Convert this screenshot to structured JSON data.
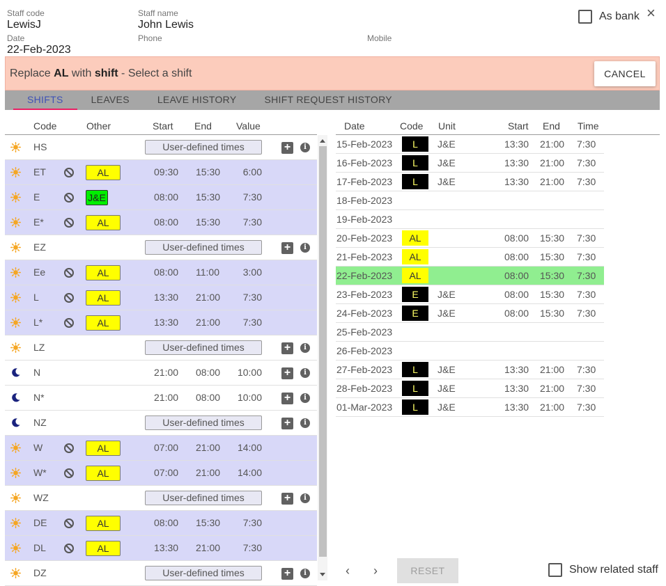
{
  "header": {
    "staff_code_label": "Staff code",
    "staff_code": "LewisJ",
    "staff_name_label": "Staff name",
    "staff_name": "John Lewis",
    "date_label": "Date",
    "date": "22-Feb-2023",
    "phone_label": "Phone",
    "mobile_label": "Mobile",
    "as_bank_label": "As bank",
    "close_icon": "×"
  },
  "banner": {
    "prefix": "Replace ",
    "from_code": "AL",
    "middle": " with ",
    "target": "shift",
    "suffix": " - Select a shift",
    "cancel_label": "CANCEL"
  },
  "tabs": [
    "SHIFTS",
    "LEAVES",
    "LEAVE HISTORY",
    "SHIFT REQUEST HISTORY"
  ],
  "shifts_table": {
    "headers": {
      "code": "Code",
      "other": "Other",
      "start": "Start",
      "end": "End",
      "value": "Value"
    },
    "user_defined_label": "User-defined times",
    "rows": [
      {
        "icon": "sun",
        "code": "HS",
        "udt": true
      },
      {
        "icon": "sun",
        "code": "ET",
        "banned": true,
        "other": "AL",
        "start": "09:30",
        "end": "15:30",
        "value": "6:00"
      },
      {
        "icon": "sun",
        "code": "E",
        "banned": true,
        "other": "J&E",
        "start": "08:00",
        "end": "15:30",
        "value": "7:30"
      },
      {
        "icon": "sun",
        "code": "E*",
        "banned": true,
        "other": "AL",
        "start": "08:00",
        "end": "15:30",
        "value": "7:30"
      },
      {
        "icon": "sun",
        "code": "EZ",
        "udt": true
      },
      {
        "icon": "sun",
        "code": "Ee",
        "banned": true,
        "other": "AL",
        "start": "08:00",
        "end": "11:00",
        "value": "3:00"
      },
      {
        "icon": "sun",
        "code": "L",
        "banned": true,
        "other": "AL",
        "start": "13:30",
        "end": "21:00",
        "value": "7:30"
      },
      {
        "icon": "sun",
        "code": "L*",
        "banned": true,
        "other": "AL",
        "start": "13:30",
        "end": "21:00",
        "value": "7:30"
      },
      {
        "icon": "sun",
        "code": "LZ",
        "udt": true
      },
      {
        "icon": "moon",
        "code": "N",
        "start": "21:00",
        "end": "08:00",
        "value": "10:00",
        "actions": true
      },
      {
        "icon": "moon",
        "code": "N*",
        "start": "21:00",
        "end": "08:00",
        "value": "10:00",
        "actions": true
      },
      {
        "icon": "moon",
        "code": "NZ",
        "udt": true
      },
      {
        "icon": "sun",
        "code": "W",
        "banned": true,
        "other": "AL",
        "start": "07:00",
        "end": "21:00",
        "value": "14:00"
      },
      {
        "icon": "sun",
        "code": "W*",
        "banned": true,
        "other": "AL",
        "start": "07:00",
        "end": "21:00",
        "value": "14:00"
      },
      {
        "icon": "sun",
        "code": "WZ",
        "udt": true
      },
      {
        "icon": "sun",
        "code": "DE",
        "banned": true,
        "other": "AL",
        "start": "08:00",
        "end": "15:30",
        "value": "7:30"
      },
      {
        "icon": "sun",
        "code": "DL",
        "banned": true,
        "other": "AL",
        "start": "13:30",
        "end": "21:00",
        "value": "7:30"
      },
      {
        "icon": "sun",
        "code": "DZ",
        "udt": true
      }
    ]
  },
  "schedule_table": {
    "headers": {
      "date": "Date",
      "code": "Code",
      "unit": "Unit",
      "start": "Start",
      "end": "End",
      "time": "Time"
    },
    "rows": [
      {
        "date": "15-Feb-2023",
        "code": "L",
        "style": "black",
        "unit": "J&E",
        "start": "13:30",
        "end": "21:00",
        "time": "7:30"
      },
      {
        "date": "16-Feb-2023",
        "code": "L",
        "style": "black",
        "unit": "J&E",
        "start": "13:30",
        "end": "21:00",
        "time": "7:30"
      },
      {
        "date": "17-Feb-2023",
        "code": "L",
        "style": "black",
        "unit": "J&E",
        "start": "13:30",
        "end": "21:00",
        "time": "7:30"
      },
      {
        "date": "18-Feb-2023"
      },
      {
        "date": "19-Feb-2023"
      },
      {
        "date": "20-Feb-2023",
        "code": "AL",
        "style": "yellow",
        "start": "08:00",
        "end": "15:30",
        "time": "7:30"
      },
      {
        "date": "21-Feb-2023",
        "code": "AL",
        "style": "yellow",
        "start": "08:00",
        "end": "15:30",
        "time": "7:30"
      },
      {
        "date": "22-Feb-2023",
        "code": "AL",
        "style": "yellow",
        "start": "08:00",
        "end": "15:30",
        "time": "7:30",
        "today": true
      },
      {
        "date": "23-Feb-2023",
        "code": "E",
        "style": "black",
        "unit": "J&E",
        "start": "08:00",
        "end": "15:30",
        "time": "7:30"
      },
      {
        "date": "24-Feb-2023",
        "code": "E",
        "style": "black",
        "unit": "J&E",
        "start": "08:00",
        "end": "15:30",
        "time": "7:30"
      },
      {
        "date": "25-Feb-2023"
      },
      {
        "date": "26-Feb-2023"
      },
      {
        "date": "27-Feb-2023",
        "code": "L",
        "style": "black",
        "unit": "J&E",
        "start": "13:30",
        "end": "21:00",
        "time": "7:30"
      },
      {
        "date": "28-Feb-2023",
        "code": "L",
        "style": "black",
        "unit": "J&E",
        "start": "13:30",
        "end": "21:00",
        "time": "7:30"
      },
      {
        "date": "01-Mar-2023",
        "code": "L",
        "style": "black",
        "unit": "J&E",
        "start": "13:30",
        "end": "21:00",
        "time": "7:30"
      }
    ]
  },
  "footer": {
    "prev_icon": "‹",
    "next_icon": "›",
    "reset_label": "RESET",
    "show_related_label": "Show related staff"
  },
  "colors": {
    "banner_bg": "#fcccbc",
    "highlight_row": "#d8d8f8",
    "today_row": "#90ee90",
    "al_badge": "#ffff00",
    "je_badge": "#00ee00",
    "active_tab": "#3f51b5",
    "tab_underline": "#e91e63"
  }
}
